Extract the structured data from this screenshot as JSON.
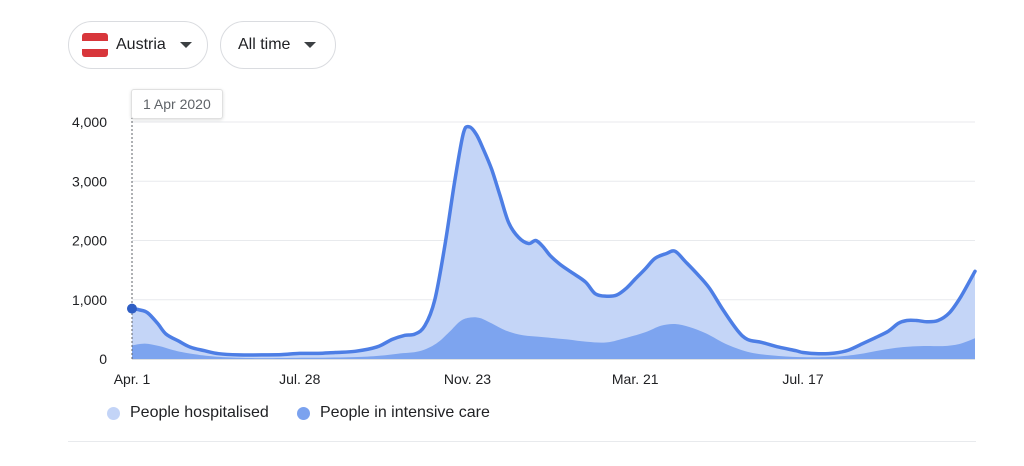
{
  "controls": {
    "region": {
      "label": "Austria",
      "flag_colors": [
        "#d8363b",
        "#ffffff",
        "#d8363b"
      ]
    },
    "time_range": {
      "label": "All time"
    }
  },
  "tooltip": {
    "date_label": "1 Apr 2020"
  },
  "legend": [
    {
      "label": "People hospitalised",
      "color": "#c3d4f7"
    },
    {
      "label": "People in intensive care",
      "color": "#7ba2ef"
    }
  ],
  "colors": {
    "line": "#4d7ee5",
    "hospitalised_fill": "#c4d5f7",
    "icu_fill": "#7da4ef",
    "marker": "#2f5ec4"
  },
  "chart_data": {
    "type": "area",
    "x_start": "2020-04-01",
    "x_end": "2021-11-15",
    "ylim": [
      0,
      4000
    ],
    "yticks": [
      0,
      1000,
      2000,
      3000,
      4000
    ],
    "ytick_labels": [
      "0",
      "1,000",
      "2,000",
      "3,000",
      "4,000"
    ],
    "xticks": [
      {
        "date": "2020-04-01",
        "label": "Apr. 1"
      },
      {
        "date": "2020-07-28",
        "label": "Jul. 28"
      },
      {
        "date": "2020-11-23",
        "label": "Nov. 23"
      },
      {
        "date": "2021-03-21",
        "label": "Mar. 21"
      },
      {
        "date": "2021-07-17",
        "label": "Jul. 17"
      }
    ],
    "grid": true,
    "legend_position": "bottom-left",
    "highlight": {
      "date": "2020-04-01",
      "value": 850
    },
    "series": [
      {
        "name": "People hospitalised",
        "points": [
          [
            "2020-04-01",
            850
          ],
          [
            "2020-04-06",
            830
          ],
          [
            "2020-04-12",
            780
          ],
          [
            "2020-04-19",
            600
          ],
          [
            "2020-04-25",
            420
          ],
          [
            "2020-05-04",
            300
          ],
          [
            "2020-05-12",
            200
          ],
          [
            "2020-05-22",
            140
          ],
          [
            "2020-06-01",
            90
          ],
          [
            "2020-06-15",
            70
          ],
          [
            "2020-07-01",
            70
          ],
          [
            "2020-07-15",
            75
          ],
          [
            "2020-07-28",
            95
          ],
          [
            "2020-08-10",
            95
          ],
          [
            "2020-08-22",
            110
          ],
          [
            "2020-09-05",
            130
          ],
          [
            "2020-09-20",
            200
          ],
          [
            "2020-10-01",
            330
          ],
          [
            "2020-10-10",
            400
          ],
          [
            "2020-10-17",
            420
          ],
          [
            "2020-10-24",
            560
          ],
          [
            "2020-10-31",
            1000
          ],
          [
            "2020-11-07",
            1900
          ],
          [
            "2020-11-14",
            3000
          ],
          [
            "2020-11-20",
            3800
          ],
          [
            "2020-11-24",
            3920
          ],
          [
            "2020-11-29",
            3800
          ],
          [
            "2020-12-04",
            3550
          ],
          [
            "2020-12-10",
            3200
          ],
          [
            "2020-12-16",
            2750
          ],
          [
            "2020-12-22",
            2300
          ],
          [
            "2020-12-29",
            2050
          ],
          [
            "2021-01-05",
            1950
          ],
          [
            "2021-01-10",
            2000
          ],
          [
            "2021-01-15",
            1900
          ],
          [
            "2021-01-20",
            1750
          ],
          [
            "2021-01-27",
            1600
          ],
          [
            "2021-02-05",
            1450
          ],
          [
            "2021-02-14",
            1300
          ],
          [
            "2021-02-21",
            1100
          ],
          [
            "2021-03-01",
            1060
          ],
          [
            "2021-03-08",
            1080
          ],
          [
            "2021-03-15",
            1200
          ],
          [
            "2021-03-21",
            1350
          ],
          [
            "2021-03-28",
            1520
          ],
          [
            "2021-04-04",
            1700
          ],
          [
            "2021-04-12",
            1780
          ],
          [
            "2021-04-18",
            1820
          ],
          [
            "2021-04-25",
            1650
          ],
          [
            "2021-05-03",
            1450
          ],
          [
            "2021-05-12",
            1200
          ],
          [
            "2021-05-22",
            820
          ],
          [
            "2021-06-01",
            480
          ],
          [
            "2021-06-08",
            330
          ],
          [
            "2021-06-18",
            280
          ],
          [
            "2021-06-30",
            200
          ],
          [
            "2021-07-12",
            140
          ],
          [
            "2021-07-17",
            110
          ],
          [
            "2021-07-28",
            90
          ],
          [
            "2021-08-08",
            100
          ],
          [
            "2021-08-18",
            150
          ],
          [
            "2021-08-28",
            260
          ],
          [
            "2021-09-05",
            350
          ],
          [
            "2021-09-15",
            470
          ],
          [
            "2021-09-22",
            600
          ],
          [
            "2021-09-28",
            650
          ],
          [
            "2021-10-05",
            650
          ],
          [
            "2021-10-12",
            630
          ],
          [
            "2021-10-20",
            650
          ],
          [
            "2021-10-28",
            780
          ],
          [
            "2021-11-05",
            1050
          ],
          [
            "2021-11-15",
            1480
          ]
        ]
      },
      {
        "name": "People in intensive care",
        "points": [
          [
            "2020-04-01",
            230
          ],
          [
            "2020-04-10",
            260
          ],
          [
            "2020-04-20",
            220
          ],
          [
            "2020-04-30",
            150
          ],
          [
            "2020-05-10",
            100
          ],
          [
            "2020-05-25",
            50
          ],
          [
            "2020-06-10",
            25
          ],
          [
            "2020-07-01",
            15
          ],
          [
            "2020-08-01",
            20
          ],
          [
            "2020-09-01",
            30
          ],
          [
            "2020-09-20",
            50
          ],
          [
            "2020-10-05",
            90
          ],
          [
            "2020-10-20",
            130
          ],
          [
            "2020-11-01",
            260
          ],
          [
            "2020-11-10",
            450
          ],
          [
            "2020-11-18",
            640
          ],
          [
            "2020-11-25",
            700
          ],
          [
            "2020-12-02",
            690
          ],
          [
            "2020-12-10",
            600
          ],
          [
            "2020-12-20",
            480
          ],
          [
            "2021-01-01",
            400
          ],
          [
            "2021-01-15",
            370
          ],
          [
            "2021-02-01",
            330
          ],
          [
            "2021-02-15",
            290
          ],
          [
            "2021-03-01",
            280
          ],
          [
            "2021-03-15",
            360
          ],
          [
            "2021-03-28",
            450
          ],
          [
            "2021-04-08",
            560
          ],
          [
            "2021-04-18",
            590
          ],
          [
            "2021-04-28",
            540
          ],
          [
            "2021-05-10",
            430
          ],
          [
            "2021-05-25",
            240
          ],
          [
            "2021-06-10",
            110
          ],
          [
            "2021-06-30",
            50
          ],
          [
            "2021-07-20",
            30
          ],
          [
            "2021-08-10",
            40
          ],
          [
            "2021-08-25",
            80
          ],
          [
            "2021-09-10",
            150
          ],
          [
            "2021-09-25",
            200
          ],
          [
            "2021-10-10",
            220
          ],
          [
            "2021-10-25",
            220
          ],
          [
            "2021-11-05",
            260
          ],
          [
            "2021-11-15",
            350
          ]
        ]
      }
    ]
  }
}
